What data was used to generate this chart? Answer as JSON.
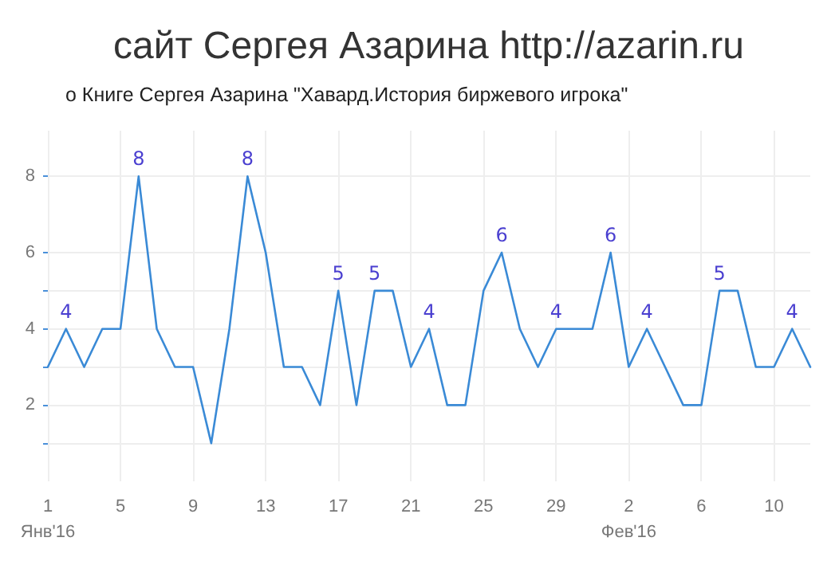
{
  "chart_data": {
    "type": "line",
    "title": "сайт Сергея Азарина http://azarin.ru",
    "subtitle": "о Книге Сергея Азарина \"Хавард.История биржевого игрока\"",
    "x": [
      "2016-01-01",
      "2016-01-02",
      "2016-01-03",
      "2016-01-04",
      "2016-01-05",
      "2016-01-06",
      "2016-01-07",
      "2016-01-08",
      "2016-01-09",
      "2016-01-10",
      "2016-01-11",
      "2016-01-12",
      "2016-01-13",
      "2016-01-14",
      "2016-01-15",
      "2016-01-16",
      "2016-01-17",
      "2016-01-18",
      "2016-01-19",
      "2016-01-20",
      "2016-01-21",
      "2016-01-22",
      "2016-01-23",
      "2016-01-24",
      "2016-01-25",
      "2016-01-26",
      "2016-01-27",
      "2016-01-28",
      "2016-01-29",
      "2016-01-30",
      "2016-01-31",
      "2016-02-01",
      "2016-02-02",
      "2016-02-03",
      "2016-02-04",
      "2016-02-05",
      "2016-02-06",
      "2016-02-07",
      "2016-02-08",
      "2016-02-09",
      "2016-02-10",
      "2016-02-11",
      "2016-02-12"
    ],
    "series": [
      {
        "color": "#3a8ad6",
        "values": [
          3,
          4,
          3,
          4,
          4,
          8,
          4,
          3,
          3,
          1,
          4,
          8,
          6,
          3,
          3,
          2,
          5,
          2,
          5,
          5,
          3,
          4,
          2,
          2,
          5,
          6,
          4,
          3,
          4,
          4,
          4,
          6,
          3,
          4,
          3,
          2,
          2,
          5,
          5,
          3,
          3,
          4,
          3
        ],
        "value_labels": [
          null,
          "4",
          null,
          null,
          null,
          "8",
          null,
          null,
          null,
          null,
          null,
          "8",
          null,
          null,
          null,
          null,
          "5",
          null,
          "5",
          null,
          null,
          "4",
          null,
          null,
          null,
          "6",
          null,
          null,
          "4",
          null,
          null,
          "6",
          null,
          "4",
          null,
          null,
          null,
          "5",
          null,
          null,
          null,
          "4",
          null
        ]
      }
    ],
    "xlim": [
      "2016-01-01",
      "2016-02-12"
    ],
    "xticks": [
      {
        "value": "2016-01-01",
        "label": "1\nЯнв'16"
      },
      {
        "value": "2016-01-05",
        "label": "5"
      },
      {
        "value": "2016-01-09",
        "label": "9"
      },
      {
        "value": "2016-01-13",
        "label": "13"
      },
      {
        "value": "2016-01-17",
        "label": "17"
      },
      {
        "value": "2016-01-21",
        "label": "21"
      },
      {
        "value": "2016-01-25",
        "label": "25"
      },
      {
        "value": "2016-01-29",
        "label": "29"
      },
      {
        "value": "2016-02-02",
        "label": "2\nФев'16"
      },
      {
        "value": "2016-02-06",
        "label": "6"
      },
      {
        "value": "2016-02-10",
        "label": "10"
      }
    ],
    "ylim": [
      0,
      9.2
    ],
    "yticks": [
      {
        "value": 1,
        "label": null
      },
      2,
      {
        "value": 3,
        "label": null
      },
      4,
      {
        "value": 5,
        "label": null
      },
      6,
      8
    ],
    "grid": true,
    "marker": "none",
    "line_style": "solid"
  }
}
